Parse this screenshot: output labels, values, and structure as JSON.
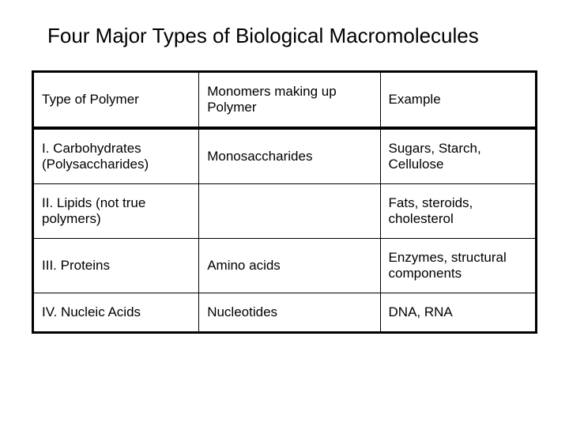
{
  "title": "Four Major Types of Biological Macromolecules",
  "table": {
    "type": "table",
    "border_color": "#000000",
    "outer_border_width": 3,
    "inner_border_width": 1,
    "header_bottom_border_width": 4,
    "background_color": "#ffffff",
    "text_color": "#000000",
    "font_size": 17,
    "title_font_size": 26,
    "columns": [
      {
        "key": "type",
        "label": "Type of Polymer",
        "width_pct": 33
      },
      {
        "key": "monomer",
        "label": "Monomers making up Polymer",
        "width_pct": 36
      },
      {
        "key": "example",
        "label": "Example",
        "width_pct": 31
      }
    ],
    "rows": [
      {
        "type": "I. Carbohydrates (Polysaccharides)",
        "monomer": "Monosaccharides",
        "example": "Sugars, Starch, Cellulose"
      },
      {
        "type": "II. Lipids (not true polymers)",
        "monomer": "",
        "example": "Fats, steroids, cholesterol"
      },
      {
        "type": "III. Proteins",
        "monomer": "Amino acids",
        "example": "Enzymes, structural components"
      },
      {
        "type": "IV. Nucleic Acids",
        "monomer": "Nucleotides",
        "example": "DNA, RNA"
      }
    ]
  }
}
